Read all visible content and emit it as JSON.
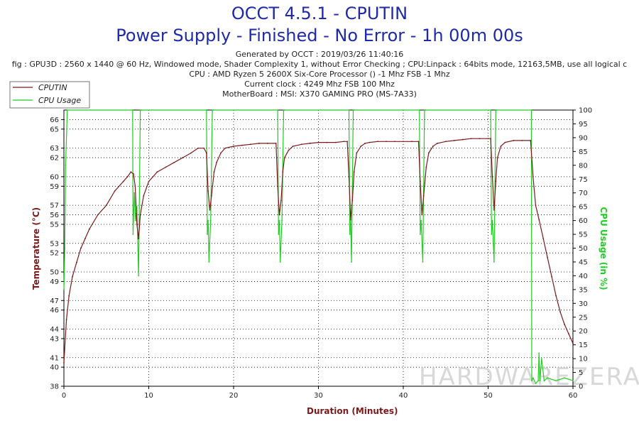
{
  "header": {
    "title": "OCCT 4.5.1 - CPUTIN",
    "subtitle": "Power Supply - Finished - No Error - 1h 00m 00s",
    "generated": "Generated by OCCT : 2019/03/26 11:40:16",
    "config": "fig : GPU3D : 2560 x 1440 @ 60 Hz, Windowed mode, Shader Complexity 1, without Error Checking ; CPU:Linpack : 64bits mode, 12163,5MB, use all logical c",
    "cpu": "CPU : AMD Ryzen 5 2600X Six-Core Processor () -1 Mhz FSB -1 Mhz",
    "clock": "Current clock : 4249 Mhz FSB 100 Mhz",
    "motherboard": "MotherBoard : MSI: X370 GAMING PRO (MS-7A33)"
  },
  "watermark": "HARDWAREZERA",
  "colors": {
    "temperature": "#7b1a1a",
    "cpu_usage": "#22cc22",
    "title": "#1e2aa8",
    "grid": "#000000",
    "watermark": "#d8d8d8"
  },
  "chart_data": {
    "type": "line",
    "xlabel": "Duration (Minutes)",
    "ylabel": "Temperature (°C)",
    "y2label": "CPU Usage (in %)",
    "xlim": [
      0,
      60
    ],
    "ylim": [
      38,
      67
    ],
    "y2lim": [
      0,
      100
    ],
    "x_ticks": [
      0,
      10,
      20,
      30,
      40,
      50,
      60
    ],
    "y_ticks": [
      38,
      40,
      41,
      43,
      44,
      46,
      47,
      49,
      50,
      52,
      53,
      55,
      56,
      57,
      59,
      60,
      62,
      63,
      65,
      66
    ],
    "y2_ticks": [
      0,
      5,
      10,
      15,
      20,
      25,
      30,
      35,
      40,
      45,
      50,
      55,
      60,
      65,
      70,
      75,
      80,
      85,
      90,
      95,
      100
    ],
    "grid": true,
    "legend": "top-left",
    "series": [
      {
        "name": "CPUTIN",
        "axis": "left",
        "x": [
          0,
          0.3,
          0.6,
          1,
          1.5,
          2,
          2.5,
          3,
          4,
          5,
          6,
          7,
          7.5,
          7.9,
          8.2,
          8.4,
          8.6,
          8.8,
          9,
          9.4,
          10,
          11,
          12,
          13,
          14,
          15,
          15.8,
          16.5,
          16.8,
          17.0,
          17.2,
          17.4,
          17.7,
          18,
          18.5,
          19,
          20,
          21,
          22,
          23,
          24,
          25,
          25.2,
          25.4,
          25.6,
          25.8,
          26,
          26.5,
          27,
          28,
          29,
          30,
          31,
          32,
          33,
          33.4,
          33.6,
          33.8,
          34.0,
          34.2,
          34.5,
          35,
          35.5,
          36,
          37,
          38,
          39,
          40,
          41,
          41.8,
          42.0,
          42.2,
          42.4,
          42.7,
          43,
          43.5,
          44,
          45,
          46,
          47,
          48,
          49,
          50,
          50.3,
          50.5,
          50.7,
          50.9,
          51.1,
          51.5,
          52,
          53,
          54,
          55,
          55.3,
          55.6,
          56,
          56.5,
          57,
          57.5,
          58,
          58.5,
          59,
          59.5,
          60
        ],
        "values": [
          40.5,
          45,
          47.5,
          49.5,
          51,
          52.5,
          53.5,
          54.5,
          56,
          57,
          58.5,
          59.5,
          60,
          60.5,
          60.3,
          59,
          55,
          53.5,
          56,
          58,
          59.5,
          60.5,
          61,
          61.5,
          62,
          62.5,
          63,
          63,
          62.5,
          58.5,
          56.5,
          58,
          60.5,
          61.5,
          62.5,
          63,
          63.2,
          63.3,
          63.4,
          63.5,
          63.5,
          63.5,
          59,
          56,
          57.5,
          60.5,
          62,
          62.8,
          63.2,
          63.4,
          63.5,
          63.6,
          63.6,
          63.6,
          63.7,
          63.7,
          60,
          55.5,
          57.5,
          60.5,
          62.5,
          63.2,
          63.5,
          63.6,
          63.7,
          63.7,
          63.7,
          63.7,
          63.7,
          63.7,
          59.5,
          56,
          58,
          61,
          62.5,
          63.2,
          63.5,
          63.7,
          63.8,
          63.9,
          64,
          64,
          64,
          64,
          60,
          56.5,
          59.5,
          62,
          63.2,
          63.6,
          63.8,
          63.8,
          63.8,
          60,
          57,
          55.5,
          53.5,
          51.5,
          49.5,
          47.5,
          45.8,
          44.5,
          43.5,
          42.5
        ]
      },
      {
        "name": "CPU Usage",
        "axis": "right",
        "x": [
          0,
          0.1,
          0.2,
          0.4,
          8.1,
          8.15,
          8.3,
          8.45,
          8.6,
          8.8,
          9.0,
          9.1,
          16.8,
          16.9,
          17.0,
          17.1,
          17.3,
          17.5,
          17.6,
          25.2,
          25.3,
          25.4,
          25.5,
          25.7,
          25.9,
          26.0,
          33.6,
          33.7,
          33.8,
          33.9,
          34.1,
          34.2,
          41.9,
          42.0,
          42.1,
          42.3,
          42.5,
          42.6,
          50.3,
          50.4,
          50.5,
          50.7,
          50.9,
          51.0,
          55.1,
          55.15,
          55.3,
          55.6,
          55.9,
          56.0,
          56.1,
          56.3,
          56.6,
          57,
          58,
          59,
          60
        ],
        "values": [
          35,
          50,
          80,
          100,
          100,
          55,
          70,
          60,
          65,
          40,
          100,
          100,
          100,
          55,
          60,
          45,
          60,
          100,
          100,
          100,
          55,
          60,
          45,
          60,
          100,
          100,
          100,
          55,
          60,
          45,
          100,
          100,
          100,
          55,
          60,
          45,
          100,
          100,
          100,
          55,
          60,
          45,
          100,
          100,
          100,
          2,
          3,
          1,
          2,
          12,
          2,
          10,
          2,
          3,
          2,
          3,
          2
        ]
      }
    ]
  }
}
